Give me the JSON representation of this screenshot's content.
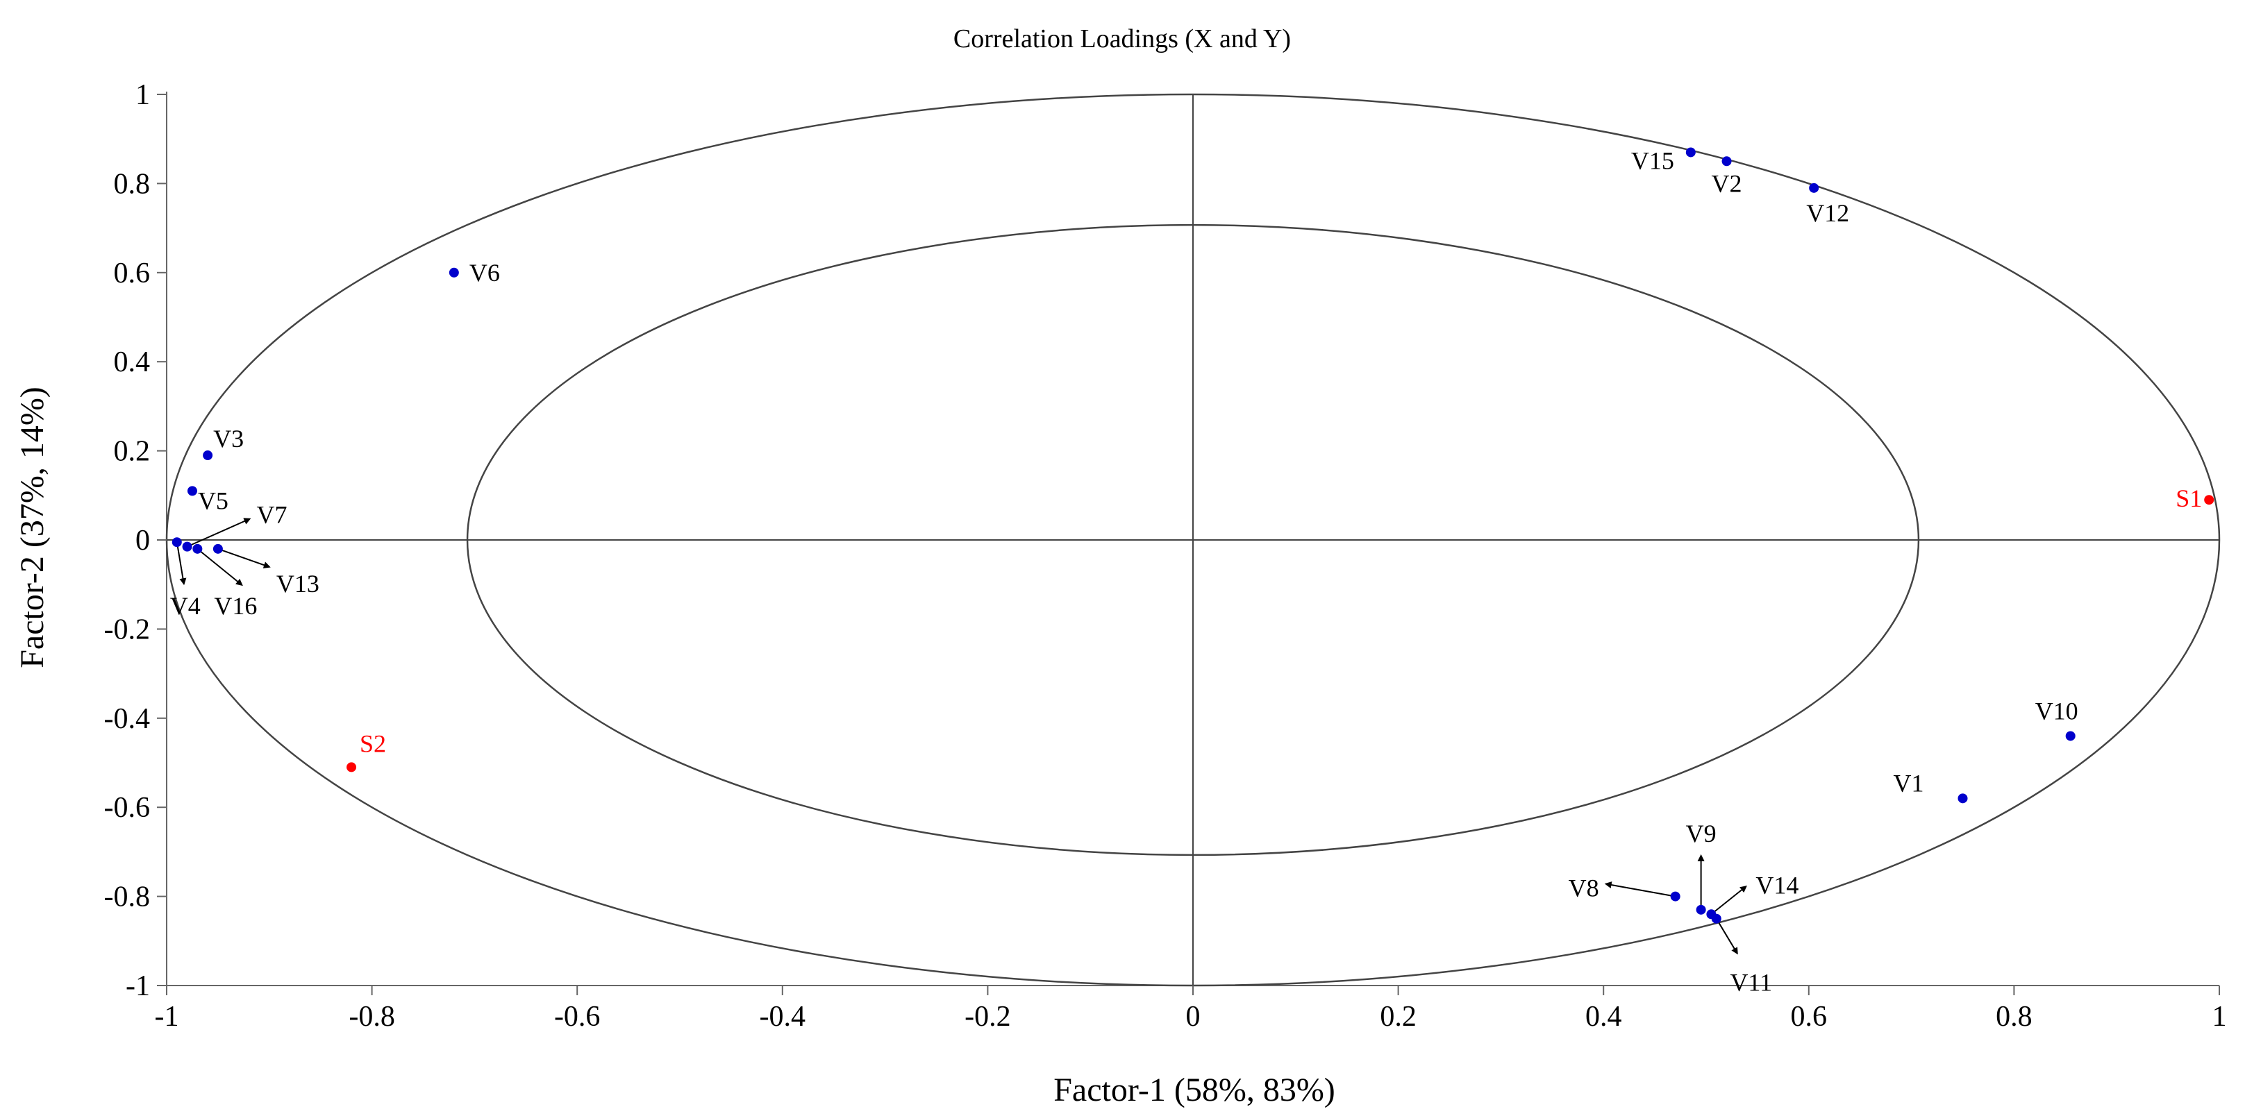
{
  "chart_data": {
    "type": "scatter",
    "title": "Correlation Loadings (X and Y)",
    "xlabel": "Factor-1 (58%, 83%)",
    "ylabel": "Factor-2 (37%, 14%)",
    "xlim": [
      -1,
      1
    ],
    "ylim": [
      -1,
      1
    ],
    "x_ticks": [
      "-1",
      "-0.8",
      "-0.6",
      "-0.4",
      "-0.2",
      "0",
      "0.2",
      "0.4",
      "0.6",
      "0.8",
      "1"
    ],
    "y_ticks": [
      "1",
      "0.8",
      "0.6",
      "0.4",
      "0.2",
      "0",
      "-0.2",
      "-0.4",
      "-0.6",
      "-0.8",
      "-1"
    ],
    "grid": false,
    "ellipses": [
      {
        "radius": 1.0
      },
      {
        "radius": 0.707
      }
    ],
    "colors": {
      "variable": "#0000cc",
      "sample": "#ff0000",
      "line": "#444444"
    },
    "series": [
      {
        "points": [
          {
            "label": "V1",
            "x": 0.75,
            "y": -0.58
          },
          {
            "label": "V2",
            "x": 0.52,
            "y": 0.85
          },
          {
            "label": "V3",
            "x": -0.96,
            "y": 0.19
          },
          {
            "label": "V4",
            "x": -0.99,
            "y": -0.005
          },
          {
            "label": "V5",
            "x": -0.975,
            "y": 0.11
          },
          {
            "label": "V6",
            "x": -0.72,
            "y": 0.6
          },
          {
            "label": "V7",
            "x": -0.98,
            "y": -0.015
          },
          {
            "label": "V8",
            "x": 0.47,
            "y": -0.8
          },
          {
            "label": "V9",
            "x": 0.495,
            "y": -0.83
          },
          {
            "label": "V10",
            "x": 0.855,
            "y": -0.44
          },
          {
            "label": "V11",
            "x": 0.51,
            "y": -0.85
          },
          {
            "label": "V12",
            "x": 0.605,
            "y": 0.79
          },
          {
            "label": "V13",
            "x": -0.95,
            "y": -0.02
          },
          {
            "label": "V14",
            "x": 0.505,
            "y": -0.84
          },
          {
            "label": "V15",
            "x": 0.485,
            "y": 0.87
          },
          {
            "label": "V16",
            "x": -0.97,
            "y": -0.02
          }
        ]
      },
      {
        "points": [
          {
            "label": "S1",
            "x": 0.99,
            "y": 0.09
          },
          {
            "label": "S2",
            "x": -0.82,
            "y": -0.51
          }
        ]
      }
    ]
  }
}
